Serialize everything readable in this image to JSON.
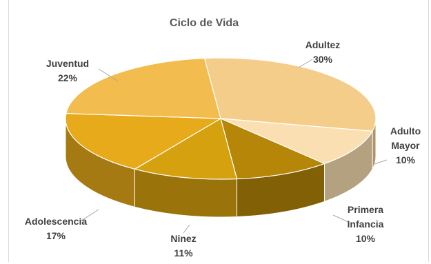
{
  "chart_data": {
    "type": "pie",
    "style": "3d",
    "title": "Ciclo de Vida",
    "slices": [
      {
        "label": "Adultez",
        "value": 30,
        "value_label": "30%",
        "color": "#F5CD8B"
      },
      {
        "label": "Adulto Mayor",
        "value": 10,
        "value_label": "10%",
        "color": "#F9DFB1"
      },
      {
        "label": "Primera Infancia",
        "value": 10,
        "value_label": "10%",
        "color": "#B58608"
      },
      {
        "label": "Ninez",
        "value": 11,
        "value_label": "11%",
        "color": "#D6A10F"
      },
      {
        "label": "Adolescencia",
        "value": 17,
        "value_label": "17%",
        "color": "#E6AA1A"
      },
      {
        "label": "Juventud",
        "value": 22,
        "value_label": "22%",
        "color": "#F2BD4E"
      }
    ],
    "legend": "none",
    "data_labels": "outside with leader lines"
  }
}
